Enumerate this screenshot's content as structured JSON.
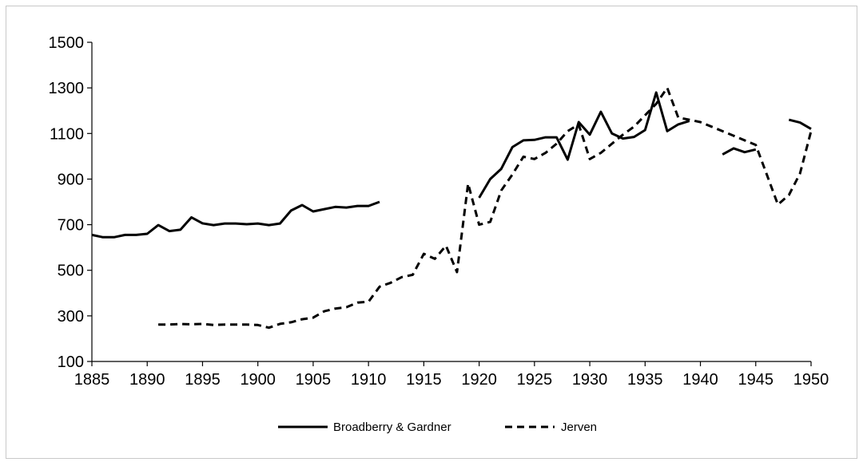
{
  "chart_data": {
    "type": "line",
    "title": "",
    "xlabel": "",
    "ylabel": "",
    "xlim": [
      1885,
      1950
    ],
    "ylim": [
      100,
      1500
    ],
    "x_ticks": [
      1885,
      1890,
      1895,
      1900,
      1905,
      1910,
      1915,
      1920,
      1925,
      1930,
      1935,
      1940,
      1945,
      1950
    ],
    "y_ticks": [
      100,
      300,
      500,
      700,
      900,
      1100,
      1300,
      1500
    ],
    "grid": false,
    "legend": "bottom",
    "series": [
      {
        "name": "Broadberry & Gardner",
        "style": "solid",
        "color": "#000000",
        "segments": [
          [
            [
              1885,
              655
            ],
            [
              1886,
              645
            ],
            [
              1887,
              645
            ],
            [
              1888,
              655
            ],
            [
              1889,
              655
            ],
            [
              1890,
              660
            ],
            [
              1891,
              698
            ],
            [
              1892,
              672
            ],
            [
              1893,
              678
            ],
            [
              1894,
              732
            ],
            [
              1895,
              706
            ],
            [
              1896,
              698
            ],
            [
              1897,
              705
            ],
            [
              1898,
              705
            ],
            [
              1899,
              702
            ],
            [
              1900,
              705
            ],
            [
              1901,
              698
            ],
            [
              1902,
              705
            ],
            [
              1903,
              762
            ],
            [
              1904,
              786
            ],
            [
              1905,
              758
            ],
            [
              1906,
              768
            ],
            [
              1907,
              778
            ],
            [
              1908,
              775
            ],
            [
              1909,
              782
            ],
            [
              1910,
              782
            ],
            [
              1911,
              800
            ]
          ],
          [
            [
              1920,
              818
            ],
            [
              1921,
              900
            ],
            [
              1922,
              945
            ],
            [
              1923,
              1040
            ],
            [
              1924,
              1070
            ],
            [
              1925,
              1072
            ],
            [
              1926,
              1083
            ],
            [
              1927,
              1083
            ],
            [
              1928,
              985
            ],
            [
              1929,
              1150
            ],
            [
              1930,
              1095
            ],
            [
              1931,
              1195
            ],
            [
              1932,
              1100
            ],
            [
              1933,
              1078
            ],
            [
              1934,
              1085
            ],
            [
              1935,
              1115
            ],
            [
              1936,
              1280
            ],
            [
              1937,
              1110
            ],
            [
              1938,
              1140
            ],
            [
              1939,
              1155
            ]
          ],
          [
            [
              1942,
              1008
            ],
            [
              1943,
              1035
            ],
            [
              1944,
              1018
            ],
            [
              1945,
              1030
            ]
          ],
          [
            [
              1948,
              1160
            ],
            [
              1949,
              1148
            ],
            [
              1950,
              1120
            ]
          ]
        ]
      },
      {
        "name": "Jerven",
        "style": "dashed",
        "color": "#000000",
        "segments": [
          [
            [
              1891,
              262
            ],
            [
              1892,
              262
            ],
            [
              1893,
              264
            ],
            [
              1894,
              263
            ],
            [
              1895,
              265
            ],
            [
              1896,
              260
            ],
            [
              1897,
              262
            ],
            [
              1898,
              262
            ],
            [
              1899,
              262
            ],
            [
              1900,
              260
            ],
            [
              1901,
              248
            ],
            [
              1902,
              265
            ],
            [
              1903,
              272
            ],
            [
              1904,
              285
            ],
            [
              1905,
              292
            ],
            [
              1906,
              320
            ],
            [
              1907,
              332
            ],
            [
              1908,
              338
            ],
            [
              1909,
              358
            ],
            [
              1910,
              362
            ],
            [
              1911,
              428
            ],
            [
              1912,
              445
            ],
            [
              1913,
              470
            ],
            [
              1914,
              480
            ],
            [
              1915,
              572
            ],
            [
              1916,
              550
            ],
            [
              1917,
              608
            ],
            [
              1918,
              492
            ],
            [
              1919,
              880
            ],
            [
              1920,
              700
            ],
            [
              1921,
              712
            ],
            [
              1922,
              850
            ],
            [
              1923,
              920
            ],
            [
              1924,
              998
            ],
            [
              1925,
              988
            ],
            [
              1926,
              1015
            ],
            [
              1927,
              1055
            ],
            [
              1928,
              1110
            ],
            [
              1929,
              1140
            ],
            [
              1930,
              988
            ],
            [
              1931,
              1015
            ],
            [
              1932,
              1055
            ],
            [
              1933,
              1095
            ],
            [
              1934,
              1130
            ],
            [
              1935,
              1180
            ],
            [
              1936,
              1230
            ],
            [
              1937,
              1300
            ],
            [
              1938,
              1170
            ],
            [
              1939,
              1160
            ],
            [
              1940,
              1150
            ],
            [
              1941,
              1130
            ],
            [
              1942,
              1110
            ],
            [
              1943,
              1090
            ],
            [
              1944,
              1070
            ],
            [
              1945,
              1050
            ],
            [
              1946,
              920
            ],
            [
              1947,
              788
            ],
            [
              1948,
              830
            ],
            [
              1949,
              925
            ],
            [
              1950,
              1110
            ]
          ]
        ]
      }
    ]
  }
}
